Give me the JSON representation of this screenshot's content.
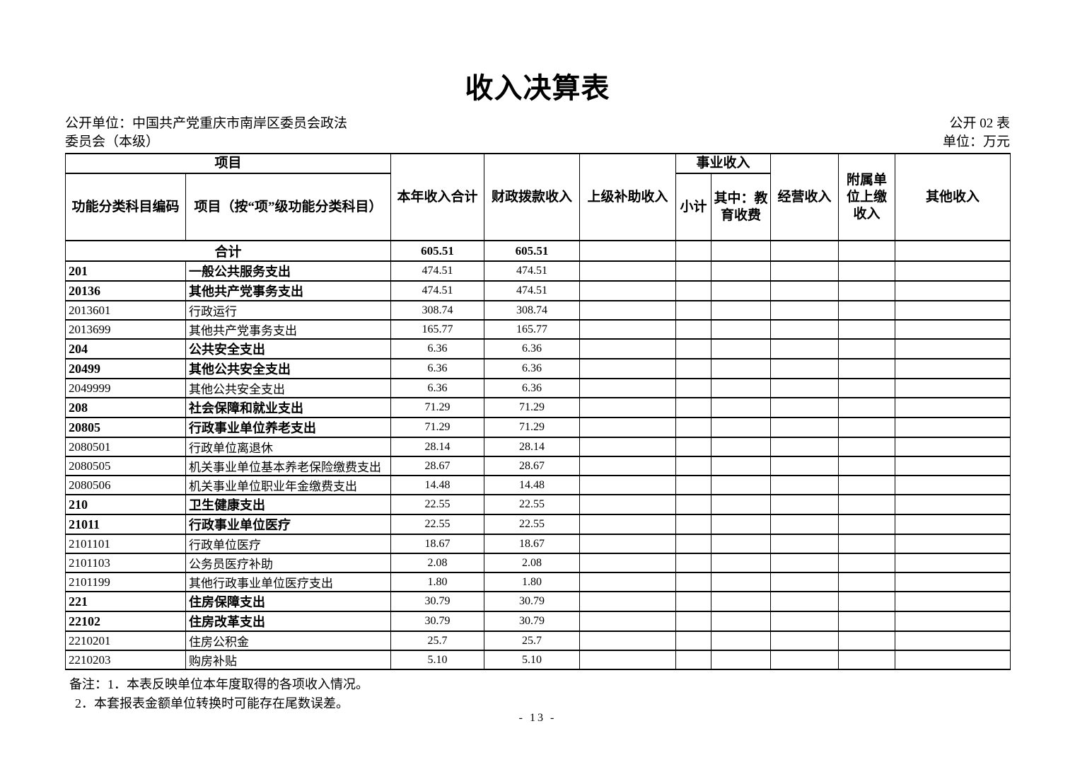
{
  "colors": {
    "text": "#000000",
    "background": "#ffffff",
    "border": "#000000"
  },
  "page": {
    "title": "收入决算表",
    "publisher_lines": [
      "公开单位：中国共产党重庆市南岸区委员会政法",
      "委员会（本级）"
    ],
    "table_no": "公开 02 表",
    "currency_unit": "单位：万元",
    "notes": [
      "备注：1．本表反映单位本年度取得的各项收入情况。",
      "2．本套报表金额单位转换时可能存在尾数误差。"
    ],
    "page_number": "- 13 -"
  },
  "table": {
    "headers": {
      "project_group": "项目",
      "code": "功能分类科目编码",
      "item": "项目（按“项”级功能分类科目）",
      "total_income": "本年收入合计",
      "fiscal_allocation": "财政拨款收入",
      "superior_subsidy": "上级补助收入",
      "business_income_group": "事业收入",
      "subtotal": "小计",
      "education_fee": "其中：教育收费",
      "operating_income": "经营收入",
      "affiliated_remit": "附属单位上缴收入",
      "other_income": "其他收入"
    },
    "empty_column_count": 6,
    "total_row": {
      "label": "合计",
      "total": "605.51",
      "fiscal": "605.51"
    },
    "rows": [
      {
        "code": "201",
        "item": "一般公共服务支出",
        "total": "474.51",
        "fiscal": "474.51",
        "bold": true
      },
      {
        "code": "20136",
        "item": "其他共产党事务支出",
        "total": "474.51",
        "fiscal": "474.51",
        "bold": true
      },
      {
        "code": "2013601",
        "item": "行政运行",
        "total": "308.74",
        "fiscal": "308.74",
        "bold": false
      },
      {
        "code": "2013699",
        "item": "其他共产党事务支出",
        "total": "165.77",
        "fiscal": "165.77",
        "bold": false
      },
      {
        "code": "204",
        "item": "公共安全支出",
        "total": "6.36",
        "fiscal": "6.36",
        "bold": true
      },
      {
        "code": "20499",
        "item": "其他公共安全支出",
        "total": "6.36",
        "fiscal": "6.36",
        "bold": true
      },
      {
        "code": "2049999",
        "item": "其他公共安全支出",
        "total": "6.36",
        "fiscal": "6.36",
        "bold": false
      },
      {
        "code": "208",
        "item": "社会保障和就业支出",
        "total": "71.29",
        "fiscal": "71.29",
        "bold": true
      },
      {
        "code": "20805",
        "item": "行政事业单位养老支出",
        "total": "71.29",
        "fiscal": "71.29",
        "bold": true
      },
      {
        "code": "2080501",
        "item": "行政单位离退休",
        "total": "28.14",
        "fiscal": "28.14",
        "bold": false
      },
      {
        "code": "2080505",
        "item": "机关事业单位基本养老保险缴费支出",
        "total": "28.67",
        "fiscal": "28.67",
        "bold": false
      },
      {
        "code": "2080506",
        "item": "机关事业单位职业年金缴费支出",
        "total": "14.48",
        "fiscal": "14.48",
        "bold": false
      },
      {
        "code": "210",
        "item": "卫生健康支出",
        "total": "22.55",
        "fiscal": "22.55",
        "bold": true
      },
      {
        "code": "21011",
        "item": "行政事业单位医疗",
        "total": "22.55",
        "fiscal": "22.55",
        "bold": true
      },
      {
        "code": "2101101",
        "item": "行政单位医疗",
        "total": "18.67",
        "fiscal": "18.67",
        "bold": false
      },
      {
        "code": "2101103",
        "item": "公务员医疗补助",
        "total": "2.08",
        "fiscal": "2.08",
        "bold": false
      },
      {
        "code": "2101199",
        "item": "其他行政事业单位医疗支出",
        "total": "1.80",
        "fiscal": "1.80",
        "bold": false
      },
      {
        "code": "221",
        "item": "住房保障支出",
        "total": "30.79",
        "fiscal": "30.79",
        "bold": true
      },
      {
        "code": "22102",
        "item": "住房改革支出",
        "total": "30.79",
        "fiscal": "30.79",
        "bold": true
      },
      {
        "code": "2210201",
        "item": "住房公积金",
        "total": "25.7",
        "fiscal": "25.7",
        "bold": false
      },
      {
        "code": "2210203",
        "item": "购房补贴",
        "total": "5.10",
        "fiscal": "5.10",
        "bold": false
      }
    ]
  }
}
